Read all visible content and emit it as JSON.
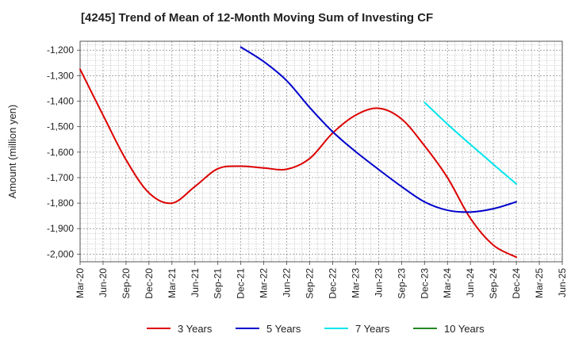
{
  "chart_data": {
    "type": "line",
    "title": "[4245]  Trend of Mean of 12-Month Moving Sum of Investing CF",
    "ylabel": "Amount (million yen)",
    "xlabel": "",
    "ylim": [
      -2030,
      -1165
    ],
    "yticks": [
      -1200,
      -1300,
      -1400,
      -1500,
      -1600,
      -1700,
      -1800,
      -1900,
      -2000
    ],
    "ytick_labels": [
      "-1,200",
      "-1,300",
      "-1,400",
      "-1,500",
      "-1,600",
      "-1,700",
      "-1,800",
      "-1,900",
      "-2,000"
    ],
    "x_categories": [
      "Mar-20",
      "Jun-20",
      "Sep-20",
      "Dec-20",
      "Mar-21",
      "Jun-21",
      "Sep-21",
      "Dec-21",
      "Mar-22",
      "Jun-22",
      "Sep-22",
      "Dec-22",
      "Mar-23",
      "Jun-23",
      "Sep-23",
      "Dec-23",
      "Mar-24",
      "Jun-24",
      "Sep-24",
      "Dec-24",
      "Mar-25",
      "Jun-25"
    ],
    "grid": true,
    "legend_position": "bottom",
    "series": [
      {
        "name": "3 Years",
        "color": "#dd0000",
        "points": [
          [
            "Mar-20",
            -1275
          ],
          [
            "Jun-20",
            -1455
          ],
          [
            "Sep-20",
            -1630
          ],
          [
            "Dec-20",
            -1760
          ],
          [
            "Mar-21",
            -1800
          ],
          [
            "Jun-21",
            -1735
          ],
          [
            "Sep-21",
            -1665
          ],
          [
            "Dec-21",
            -1655
          ],
          [
            "Mar-22",
            -1662
          ],
          [
            "Jun-22",
            -1667
          ],
          [
            "Sep-22",
            -1625
          ],
          [
            "Dec-22",
            -1525
          ],
          [
            "Mar-23",
            -1455
          ],
          [
            "Jun-23",
            -1428
          ],
          [
            "Sep-23",
            -1470
          ],
          [
            "Dec-23",
            -1575
          ],
          [
            "Mar-24",
            -1700
          ],
          [
            "Jun-24",
            -1860
          ],
          [
            "Sep-24",
            -1965
          ],
          [
            "Dec-24",
            -2012
          ]
        ]
      },
      {
        "name": "5 Years",
        "color": "#0000cc",
        "points": [
          [
            "Dec-21",
            -1188
          ],
          [
            "Mar-22",
            -1245
          ],
          [
            "Jun-22",
            -1320
          ],
          [
            "Sep-22",
            -1425
          ],
          [
            "Dec-22",
            -1520
          ],
          [
            "Mar-23",
            -1598
          ],
          [
            "Jun-23",
            -1668
          ],
          [
            "Sep-23",
            -1735
          ],
          [
            "Dec-23",
            -1795
          ],
          [
            "Mar-24",
            -1828
          ],
          [
            "Jun-24",
            -1835
          ],
          [
            "Sep-24",
            -1822
          ],
          [
            "Dec-24",
            -1795
          ]
        ]
      },
      {
        "name": "7 Years",
        "color": "#00e5ee",
        "points": [
          [
            "Dec-23",
            -1405
          ],
          [
            "Mar-24",
            -1490
          ],
          [
            "Jun-24",
            -1570
          ],
          [
            "Sep-24",
            -1648
          ],
          [
            "Dec-24",
            -1725
          ]
        ]
      },
      {
        "name": "10 Years",
        "color": "#228822",
        "points": []
      }
    ]
  }
}
